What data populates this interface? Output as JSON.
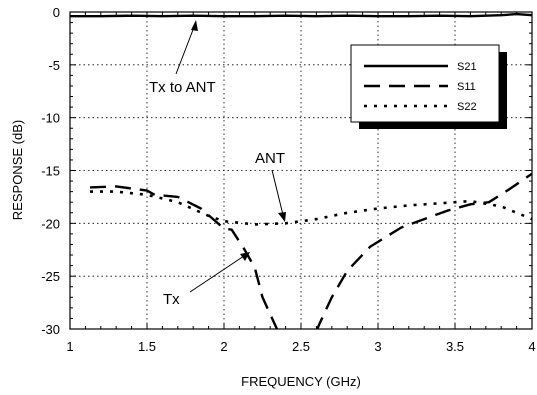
{
  "chart_data": {
    "type": "line",
    "title": "",
    "xlabel": "FREQUENCY (GHz)",
    "ylabel": "RESPONSE (dB)",
    "xlim": [
      1,
      4
    ],
    "ylim": [
      -30,
      0
    ],
    "xticks": [
      1,
      1.5,
      2,
      2.5,
      3,
      3.5,
      4
    ],
    "yticks": [
      0,
      -5,
      -10,
      -15,
      -20,
      -25,
      -30
    ],
    "grid": true,
    "legend_position": "top-right",
    "series": [
      {
        "name": "S21",
        "style": "solid",
        "x": [
          1.0,
          1.2,
          1.4,
          1.6,
          1.8,
          2.0,
          2.2,
          2.4,
          2.6,
          2.8,
          3.0,
          3.2,
          3.4,
          3.6,
          3.8,
          3.9,
          4.0
        ],
        "y": [
          -0.4,
          -0.4,
          -0.35,
          -0.4,
          -0.35,
          -0.4,
          -0.4,
          -0.35,
          -0.4,
          -0.35,
          -0.4,
          -0.4,
          -0.35,
          -0.4,
          -0.3,
          -0.2,
          -0.3
        ]
      },
      {
        "name": "S11",
        "style": "dashed",
        "x": [
          1.13,
          1.3,
          1.5,
          1.55,
          1.7,
          1.85,
          2.0,
          2.05,
          2.13,
          2.2,
          2.25,
          2.35,
          2.45,
          2.55,
          2.62,
          2.7,
          2.8,
          2.95,
          3.05,
          3.15,
          3.3,
          3.45,
          3.6,
          3.72,
          3.85,
          4.0
        ],
        "y": [
          -16.6,
          -16.5,
          -16.9,
          -17.3,
          -17.5,
          -18.6,
          -20.5,
          -20.6,
          -22.4,
          -24.2,
          -27.0,
          -30.2,
          -32.0,
          -32.0,
          -29.5,
          -27.0,
          -24.5,
          -22.2,
          -21.3,
          -20.4,
          -19.6,
          -18.8,
          -18.2,
          -18.0,
          -16.8,
          -15.3
        ]
      },
      {
        "name": "S22",
        "style": "dotted",
        "x": [
          1.13,
          1.3,
          1.5,
          1.7,
          1.9,
          2.0,
          2.2,
          2.4,
          2.6,
          2.8,
          3.0,
          3.2,
          3.4,
          3.6,
          3.8,
          4.0
        ],
        "y": [
          -17.0,
          -17.0,
          -17.3,
          -18.0,
          -19.3,
          -19.8,
          -20.1,
          -20.0,
          -19.6,
          -19.0,
          -18.6,
          -18.3,
          -18.1,
          -17.9,
          -18.4,
          -19.6
        ]
      }
    ],
    "annotations": [
      {
        "text": "Tx to ANT",
        "target_x": 1.82,
        "target_y": -0.7
      },
      {
        "text": "ANT",
        "target_x": 2.38,
        "target_y": -20.0
      },
      {
        "text": "Tx",
        "target_x": 2.18,
        "target_y": -23.2
      }
    ]
  }
}
